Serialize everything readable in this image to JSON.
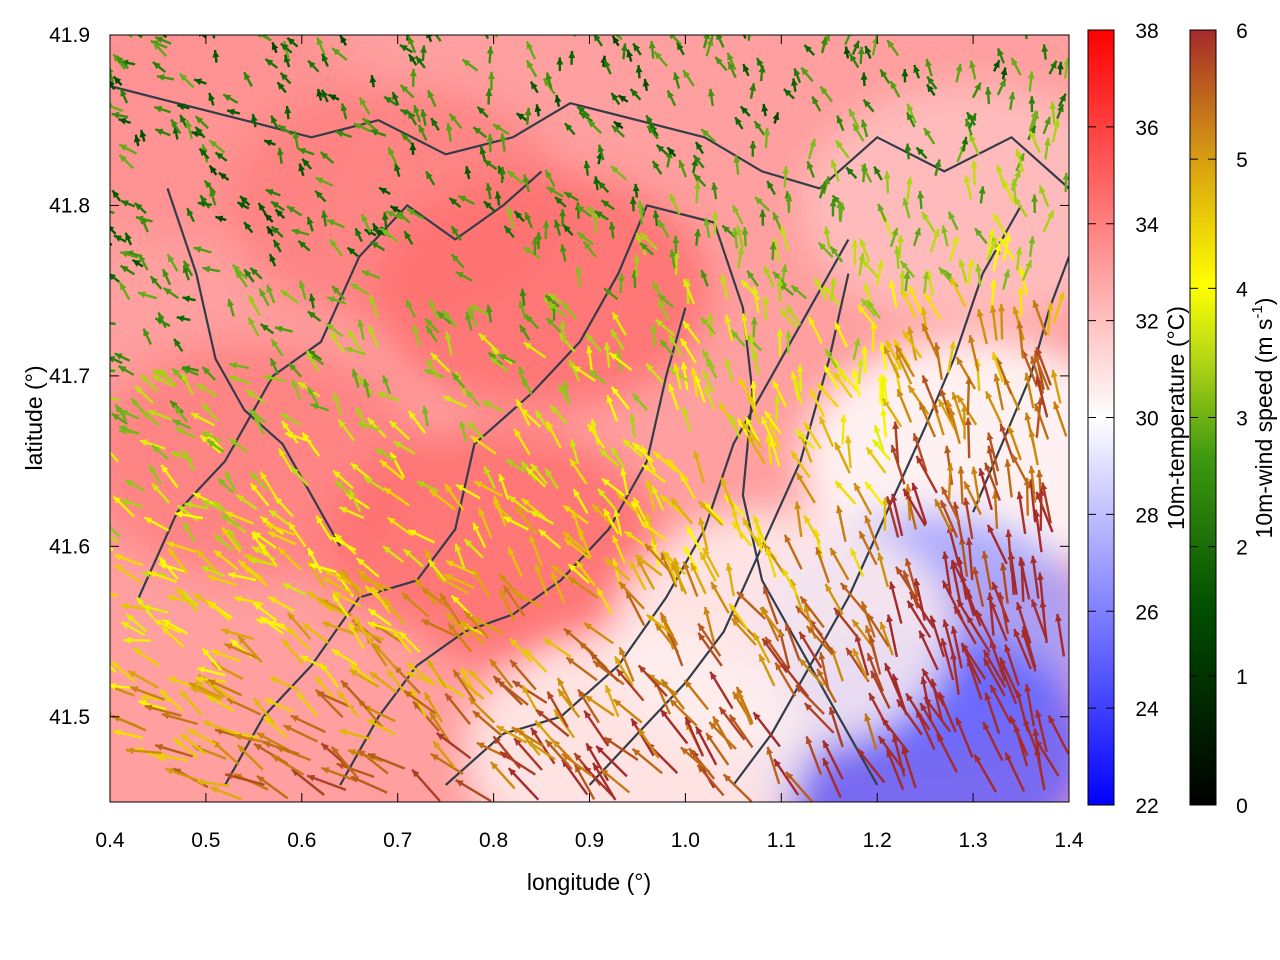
{
  "chart_data": {
    "type": "heatmap",
    "xlabel": "longitude (°)",
    "ylabel": "latitude (°)",
    "xlim": [
      0.4,
      1.4
    ],
    "ylim": [
      41.45,
      41.9
    ],
    "x_ticks": [
      "0.4",
      "0.5",
      "0.6",
      "0.7",
      "0.8",
      "0.9",
      "1.0",
      "1.1",
      "1.2",
      "1.3",
      "1.4"
    ],
    "x_tick_values": [
      0.4,
      0.5,
      0.6,
      0.7,
      0.8,
      0.9,
      1.0,
      1.1,
      1.2,
      1.3,
      1.4
    ],
    "y_ticks": [
      "41.5",
      "41.6",
      "41.7",
      "41.8",
      "41.9"
    ],
    "y_tick_values": [
      41.5,
      41.6,
      41.7,
      41.8,
      41.9
    ],
    "temperature_colorbar": {
      "label": "10m-temperature (°C)",
      "range": [
        22,
        38
      ],
      "tick_labels": [
        "22",
        "24",
        "26",
        "28",
        "30",
        "32",
        "34",
        "36",
        "38"
      ],
      "tick_values": [
        22,
        24,
        26,
        28,
        30,
        32,
        34,
        36,
        38
      ],
      "colors": [
        "#0000ff",
        "#ffffff",
        "#ff0000"
      ]
    },
    "wind_colorbar": {
      "label_main": "10m-wind speed (m s",
      "label_sup": "-1",
      "label_end": ")",
      "range": [
        0,
        6
      ],
      "tick_labels": [
        "0",
        "1",
        "2",
        "3",
        "4",
        "5",
        "6"
      ],
      "tick_values": [
        0,
        1,
        2,
        3,
        4,
        5,
        6
      ],
      "colors": [
        "#000000",
        "#006400",
        "#7cbd1e",
        "#ffff00",
        "#cd8b0b",
        "#a52a2a"
      ]
    },
    "temperature_field_samples": [
      {
        "lon": 0.5,
        "lat": 41.85,
        "t": 33.5
      },
      {
        "lon": 0.7,
        "lat": 41.8,
        "t": 34.0
      },
      {
        "lon": 0.85,
        "lat": 41.75,
        "t": 34.5
      },
      {
        "lon": 0.55,
        "lat": 41.65,
        "t": 34.0
      },
      {
        "lon": 0.8,
        "lat": 41.6,
        "t": 34.5
      },
      {
        "lon": 0.6,
        "lat": 41.5,
        "t": 33.0
      },
      {
        "lon": 1.1,
        "lat": 41.85,
        "t": 33.0
      },
      {
        "lon": 1.3,
        "lat": 41.8,
        "t": 32.0
      },
      {
        "lon": 1.3,
        "lat": 41.65,
        "t": 30.0
      },
      {
        "lon": 1.25,
        "lat": 41.55,
        "t": 27.0
      },
      {
        "lon": 1.25,
        "lat": 41.48,
        "t": 25.0
      },
      {
        "lon": 1.1,
        "lat": 41.55,
        "t": 30.5
      },
      {
        "lon": 0.95,
        "lat": 41.48,
        "t": 30.5
      }
    ]
  }
}
